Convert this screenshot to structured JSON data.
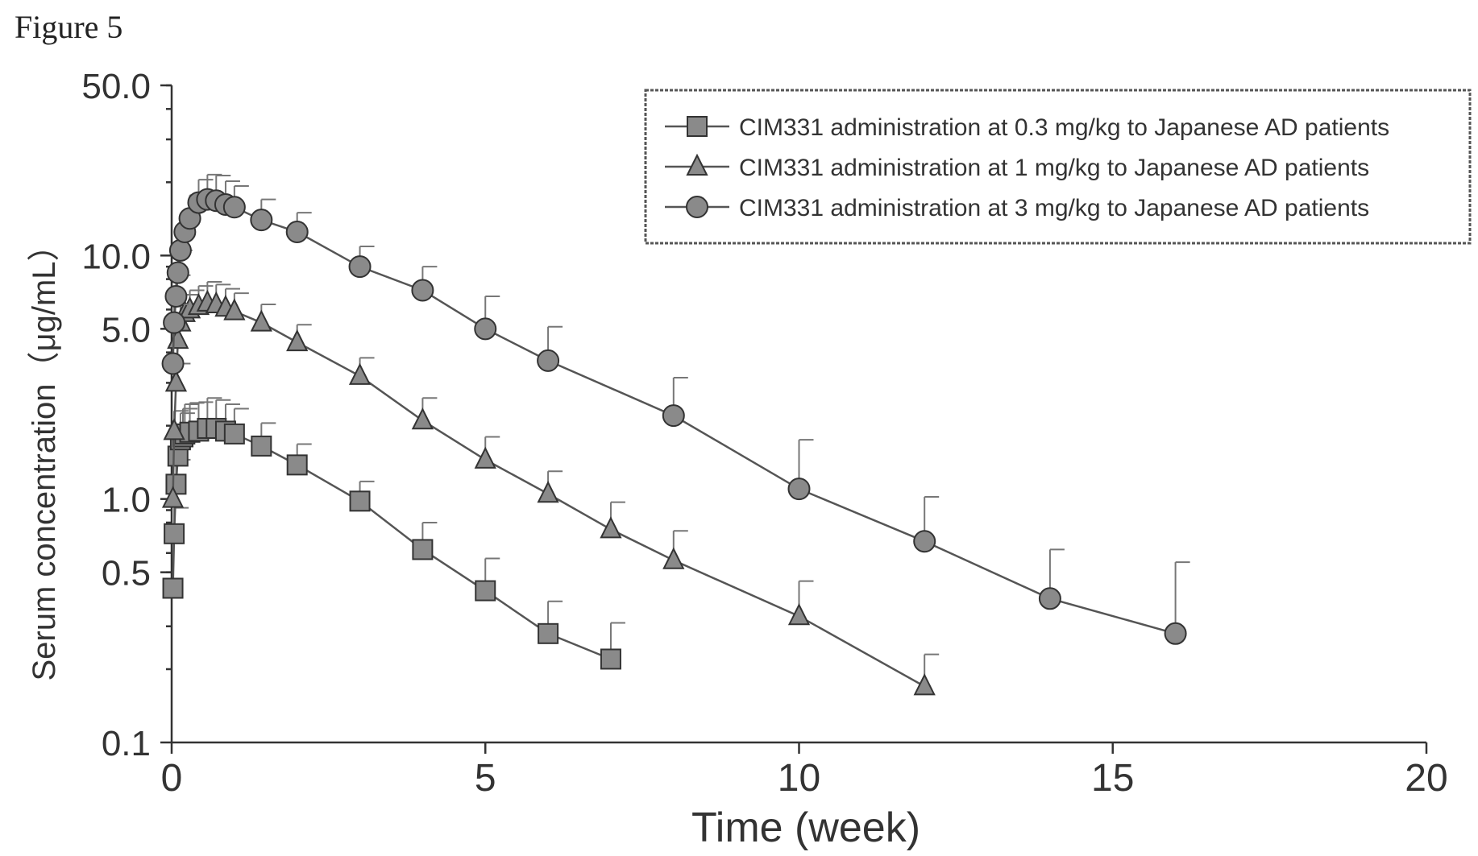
{
  "figure_label": "Figure 5",
  "colors": {
    "axis": "#333333",
    "line": "#555555",
    "marker_fill": "#8a8a8a"
  },
  "chart_data": {
    "type": "line",
    "xlabel": "Time (week)",
    "ylabel": "Serum concentration（μg/mL）",
    "xscale": "linear",
    "yscale": "log",
    "xlim": [
      0,
      20
    ],
    "ylim": [
      0.1,
      50
    ],
    "x_ticks": [
      0,
      5,
      10,
      15,
      20
    ],
    "y_ticks": [
      0.1,
      0.5,
      1.0,
      5.0,
      10.0,
      50.0
    ],
    "y_tick_labels": [
      "0.1",
      "0.5",
      "1.0",
      "5.0",
      "10.0",
      "50.0"
    ],
    "legend_position": "top-right",
    "grid": false,
    "series": [
      {
        "name": "CIM331 administration at 0.3 mg/kg to Japanese AD patients",
        "marker": "square",
        "x": [
          0.02,
          0.04,
          0.07,
          0.1,
          0.14,
          0.18,
          0.21,
          0.29,
          0.43,
          0.57,
          0.71,
          0.86,
          1.0,
          1.43,
          2,
          3,
          4,
          5,
          6,
          7
        ],
        "y": [
          0.43,
          0.72,
          1.15,
          1.5,
          1.75,
          1.8,
          1.85,
          1.88,
          1.9,
          1.95,
          1.95,
          1.9,
          1.85,
          1.65,
          1.38,
          0.98,
          0.62,
          0.42,
          0.28,
          0.22
        ],
        "err_plus": [
          0,
          0.2,
          0.3,
          0.4,
          0.5,
          0.55,
          0.6,
          0.6,
          0.6,
          0.65,
          0.6,
          0.55,
          0.5,
          0.4,
          0.3,
          0.2,
          0.18,
          0.15,
          0.1,
          0.09
        ]
      },
      {
        "name": "CIM331 administration at 1 mg/kg to Japanese AD patients",
        "marker": "triangle",
        "x": [
          0.02,
          0.04,
          0.07,
          0.1,
          0.14,
          0.21,
          0.29,
          0.43,
          0.57,
          0.71,
          0.86,
          1.0,
          1.43,
          2,
          3,
          4,
          5,
          6,
          7,
          8,
          10,
          12
        ],
        "y": [
          1.0,
          1.9,
          3.0,
          4.5,
          5.3,
          5.8,
          6.0,
          6.2,
          6.4,
          6.3,
          6.1,
          5.9,
          5.3,
          4.4,
          3.2,
          2.1,
          1.45,
          1.05,
          0.75,
          0.56,
          0.33,
          0.17
        ],
        "err_plus": [
          0,
          0.4,
          0.6,
          0.9,
          1.0,
          1.1,
          1.2,
          1.3,
          1.4,
          1.3,
          1.2,
          1.1,
          1.0,
          0.8,
          0.6,
          0.5,
          0.35,
          0.25,
          0.22,
          0.18,
          0.13,
          0.06
        ]
      },
      {
        "name": "CIM331 administration at 3 mg/kg to Japanese AD patients",
        "marker": "circle",
        "x": [
          0.02,
          0.04,
          0.07,
          0.1,
          0.14,
          0.21,
          0.29,
          0.43,
          0.57,
          0.71,
          0.86,
          1.0,
          1.43,
          2,
          3,
          4,
          5,
          6,
          8,
          10,
          12,
          14,
          16
        ],
        "y": [
          3.6,
          5.3,
          6.8,
          8.5,
          10.5,
          12.5,
          14.2,
          16.5,
          17.0,
          16.8,
          16.2,
          15.8,
          14.0,
          12.5,
          9.0,
          7.2,
          5.0,
          3.7,
          2.2,
          1.1,
          0.67,
          0.39,
          0.28
        ],
        "err_plus": [
          0,
          1.0,
          1.5,
          2.0,
          2.5,
          3.0,
          3.5,
          4.0,
          4.5,
          4.5,
          4.0,
          3.5,
          3.0,
          2.5,
          1.9,
          1.8,
          1.8,
          1.4,
          0.95,
          0.65,
          0.35,
          0.23,
          0.27
        ]
      }
    ]
  }
}
